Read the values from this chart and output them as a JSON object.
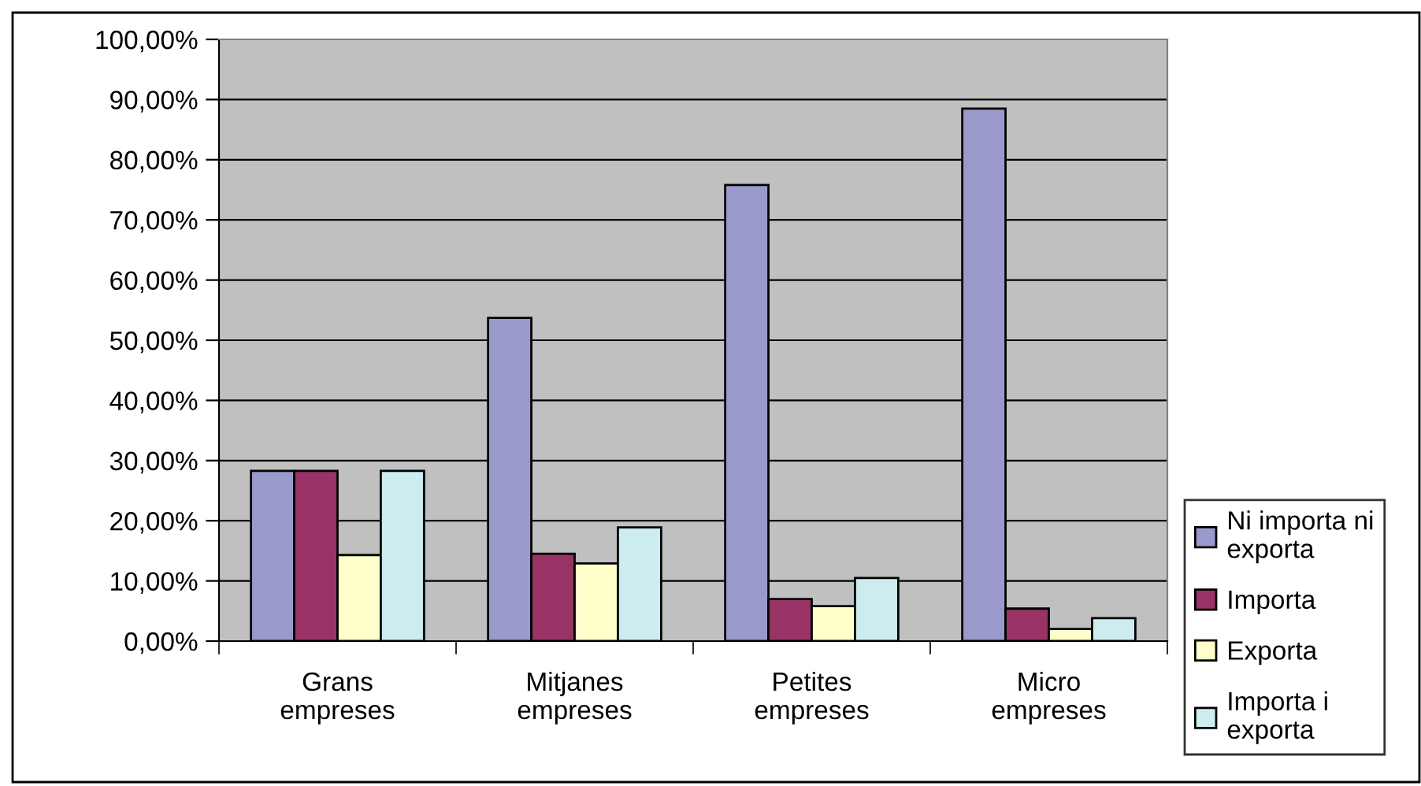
{
  "chart_data": {
    "type": "bar",
    "categories": [
      "Grans\nempreses",
      "Mitjanes\nempreses",
      "Petites\nempreses",
      "Micro\nempreses"
    ],
    "series": [
      {
        "name": "Ni importa ni\nexporta",
        "color": "#9999cc",
        "values": [
          28.3,
          53.7,
          75.8,
          88.5
        ]
      },
      {
        "name": "Importa",
        "color": "#993366",
        "values": [
          28.3,
          14.5,
          7.0,
          5.4
        ]
      },
      {
        "name": "Exporta",
        "color": "#ffffcc",
        "values": [
          14.3,
          12.9,
          5.8,
          2.0
        ]
      },
      {
        "name": "Importa i\nexporta",
        "color": "#ccecf0",
        "values": [
          28.3,
          18.9,
          10.5,
          3.8
        ]
      }
    ],
    "ylim": [
      0,
      100
    ],
    "yticks": [
      {
        "value": 0,
        "label": "0,00%"
      },
      {
        "value": 10,
        "label": "10,00%"
      },
      {
        "value": 20,
        "label": "20,00%"
      },
      {
        "value": 30,
        "label": "30,00%"
      },
      {
        "value": 40,
        "label": "40,00%"
      },
      {
        "value": 50,
        "label": "50,00%"
      },
      {
        "value": 60,
        "label": "60,00%"
      },
      {
        "value": 70,
        "label": "70,00%"
      },
      {
        "value": 80,
        "label": "80,00%"
      },
      {
        "value": 90,
        "label": "90,00%"
      },
      {
        "value": 100,
        "label": "100,00%"
      }
    ],
    "grid": "y",
    "legend": "right"
  }
}
